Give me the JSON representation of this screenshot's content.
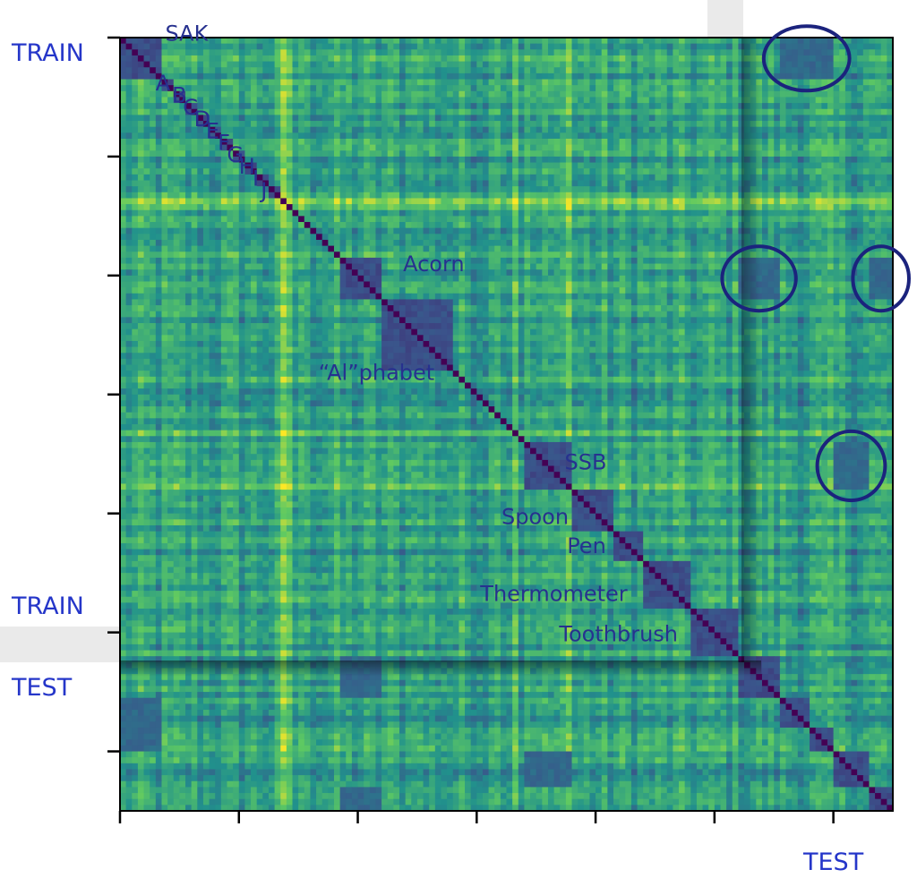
{
  "chart_data": {
    "type": "heatmap",
    "title": "",
    "xlabel": "TEST",
    "ylabel": "",
    "axis_labels": {
      "y_top": "TRAIN",
      "y_middle": "TRAIN",
      "y_bottom": "TEST",
      "x_right": "TEST"
    },
    "matrix_size": 130,
    "train_count": 104,
    "test_count": 26,
    "grid": false,
    "legend": "none",
    "colormap": [
      "#440154",
      "#3b528b",
      "#21918c",
      "#5ec962",
      "#fde725"
    ],
    "blocks": [
      {
        "label": "SAK",
        "start": 0,
        "end": 7
      },
      {
        "label": "A",
        "start": 7,
        "end": 9
      },
      {
        "label": "B",
        "start": 9,
        "end": 11
      },
      {
        "label": "C",
        "start": 11,
        "end": 13
      },
      {
        "label": "D",
        "start": 13,
        "end": 15
      },
      {
        "label": "E",
        "start": 15,
        "end": 17
      },
      {
        "label": "F",
        "start": 17,
        "end": 19
      },
      {
        "label": "G",
        "start": 19,
        "end": 21
      },
      {
        "label": "H",
        "start": 21,
        "end": 23
      },
      {
        "label": "I",
        "start": 23,
        "end": 25
      },
      {
        "label": "J",
        "start": 25,
        "end": 27
      },
      {
        "label": "Acorn",
        "start": 37,
        "end": 44
      },
      {
        "label": "“Al”phabet",
        "start": 44,
        "end": 56
      },
      {
        "label": "SSB",
        "start": 68,
        "end": 76
      },
      {
        "label": "Spoon",
        "start": 76,
        "end": 83
      },
      {
        "label": "Pen",
        "start": 83,
        "end": 88
      },
      {
        "label": "Thermometer",
        "start": 88,
        "end": 96
      },
      {
        "label": "Toothbrush",
        "start": 96,
        "end": 104
      }
    ],
    "test_blocks": [
      {
        "start": 104,
        "end": 111
      },
      {
        "start": 111,
        "end": 116
      },
      {
        "start": 116,
        "end": 120
      },
      {
        "start": 120,
        "end": 126
      },
      {
        "start": 126,
        "end": 130
      }
    ],
    "highlighted_cross_blocks": [
      {
        "rows": [
          0,
          7
        ],
        "cols": [
          111,
          120
        ]
      },
      {
        "rows": [
          37,
          44
        ],
        "cols": [
          104,
          111
        ]
      },
      {
        "rows": [
          37,
          44
        ],
        "cols": [
          126,
          130
        ]
      },
      {
        "rows": [
          68,
          76
        ],
        "cols": [
          120,
          126
        ]
      }
    ],
    "x_ticks": 7,
    "y_ticks": 7,
    "circle_color": "#1b237d"
  }
}
